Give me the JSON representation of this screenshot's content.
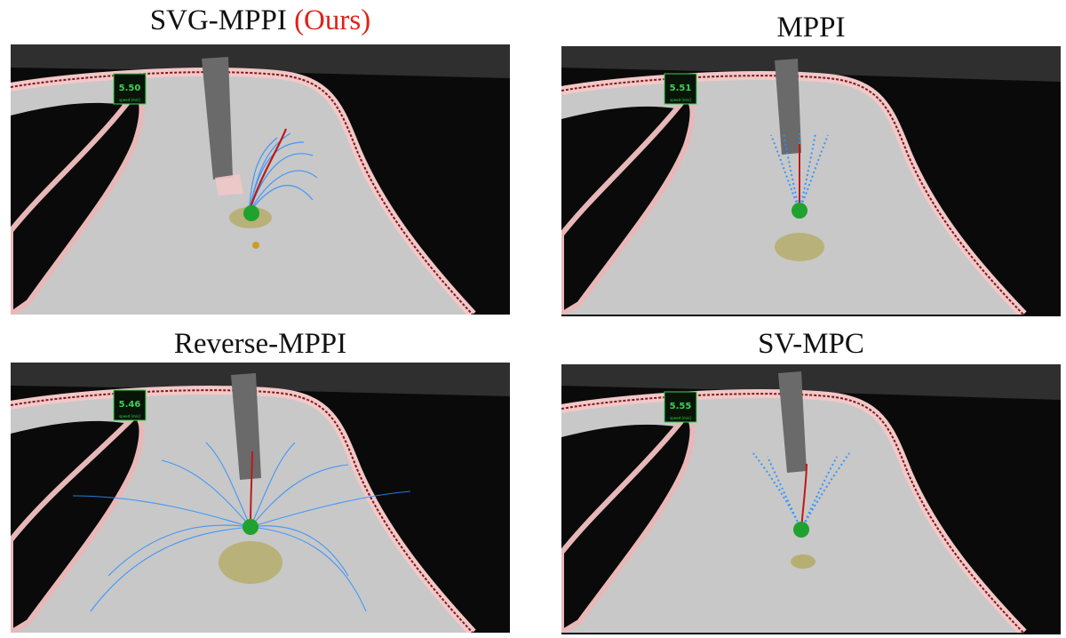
{
  "panels": [
    {
      "title": "SVG-MPPI",
      "title_suffix": "(Ours)",
      "speed": "5.50",
      "speed_unit": "speed [m/s]"
    },
    {
      "title": "MPPI",
      "title_suffix": "",
      "speed": "5.51",
      "speed_unit": "speed [m/s]"
    },
    {
      "title": "Reverse-MPPI",
      "title_suffix": "",
      "speed": "5.46",
      "speed_unit": "speed [m/s]"
    },
    {
      "title": "SV-MPC",
      "title_suffix": "",
      "speed": "5.55",
      "speed_unit": "speed [m/s]"
    }
  ],
  "colors": {
    "accent": "#e0221b",
    "track": "#bdbdbd",
    "wall": "#0a0a0a",
    "trajectory": "#2a8fff",
    "robot": "#1fa22e",
    "hud_text": "#39d353",
    "nominal_path": "#c01818"
  }
}
